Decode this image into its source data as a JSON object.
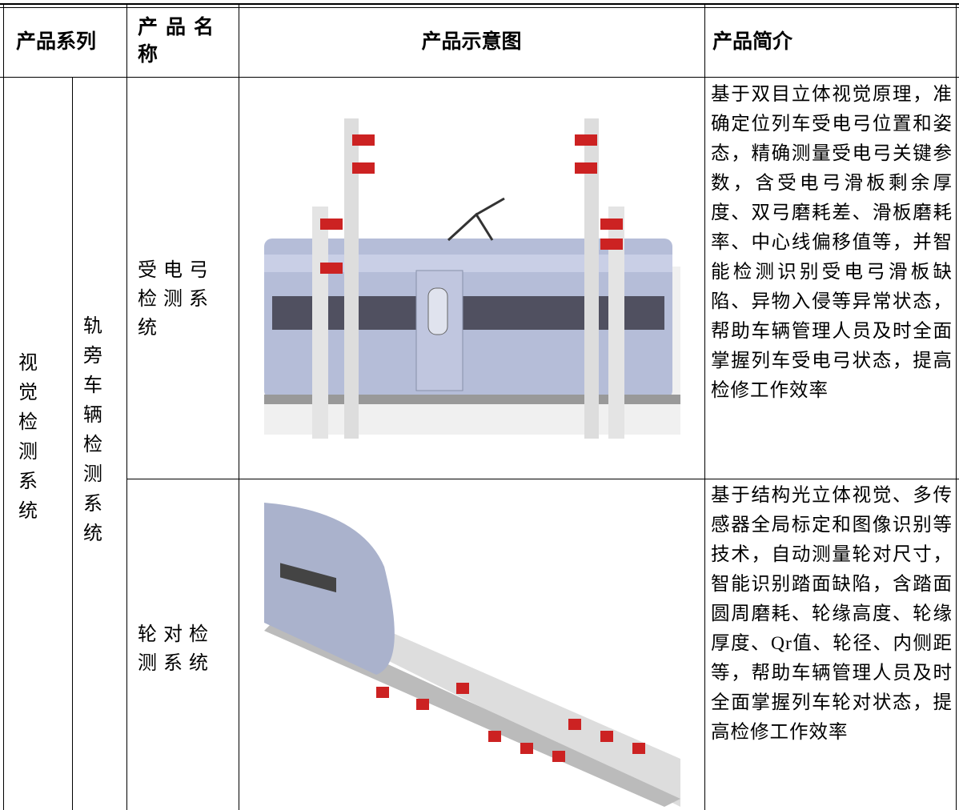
{
  "table": {
    "header": [
      "产品系列",
      "产品名称",
      "产品示意图",
      "产品简介"
    ],
    "series": "视觉检测系统",
    "subseries": "轨旁车辆检测系统",
    "rows": [
      {
        "name": "受电弓检测系统",
        "description": "基于双目立体视觉原理，准确定位列车受电弓位置和姿态，精确测量受电弓关键参数，含受电弓滑板剩余厚度、双弓磨耗差、滑板磨耗率、中心线偏移值等，并智能检测识别受电弓滑板缺陷、异物入侵等异常状态，帮助车辆管理人员及时全面掌握列车受电弓状态，提高检修工作效率"
      },
      {
        "name": "轮对检测系统",
        "description": "基于结构光立体视觉、多传感器全局标定和图像识别等技术，自动测量轮对尺寸，智能识别踏面缺陷，含踏面圆周磨耗、轮缘高度、轮缘厚度、Qr值、轮径、内侧距等，帮助车辆管理人员及时全面掌握列车轮对状态，提高检修工作效率"
      }
    ]
  }
}
